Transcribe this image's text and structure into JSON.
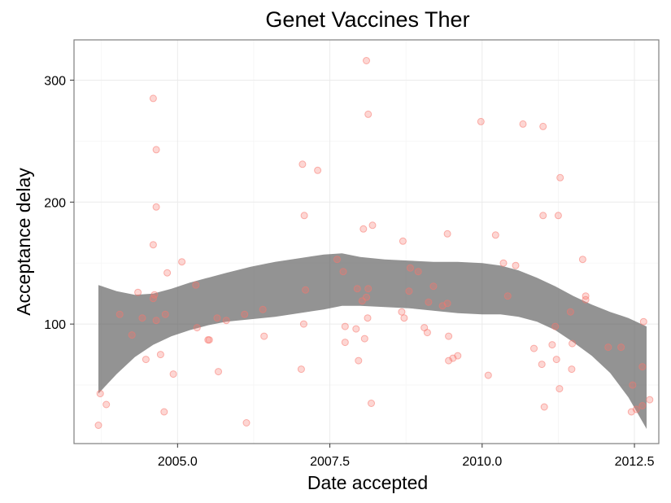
{
  "chart_data": {
    "type": "scatter",
    "title": "Genet Vaccines Ther",
    "xlabel": "Date accepted",
    "ylabel": "Acceptance delay",
    "xlim": [
      2003.3,
      2012.9
    ],
    "ylim": [
      2,
      333
    ],
    "x_ticks": [
      2005.0,
      2007.5,
      2010.0,
      2012.5
    ],
    "x_tick_labels": [
      "2005.0",
      "2007.5",
      "2010.0",
      "2012.5"
    ],
    "y_ticks": [
      100,
      200,
      300
    ],
    "y_tick_labels": [
      "100",
      "200",
      "300"
    ],
    "grid": true,
    "legend": "none",
    "colors": {
      "points": "#f8766d",
      "smooth_band": "#595959",
      "panel_border": "#7f7f7f"
    },
    "points": [
      [
        2003.7,
        17
      ],
      [
        2003.73,
        43
      ],
      [
        2003.83,
        34
      ],
      [
        2004.05,
        108
      ],
      [
        2004.25,
        91
      ],
      [
        2004.35,
        126
      ],
      [
        2004.42,
        105
      ],
      [
        2004.48,
        71
      ],
      [
        2004.6,
        285
      ],
      [
        2004.6,
        165
      ],
      [
        2004.6,
        121
      ],
      [
        2004.62,
        124
      ],
      [
        2004.65,
        243
      ],
      [
        2004.65,
        196
      ],
      [
        2004.65,
        103
      ],
      [
        2004.72,
        75
      ],
      [
        2004.78,
        28
      ],
      [
        2004.8,
        108
      ],
      [
        2004.83,
        142
      ],
      [
        2004.93,
        59
      ],
      [
        2005.07,
        151
      ],
      [
        2005.3,
        132
      ],
      [
        2005.32,
        97
      ],
      [
        2005.5,
        87
      ],
      [
        2005.52,
        87
      ],
      [
        2005.65,
        105
      ],
      [
        2005.67,
        61
      ],
      [
        2005.8,
        103
      ],
      [
        2006.1,
        108
      ],
      [
        2006.13,
        19
      ],
      [
        2006.4,
        112
      ],
      [
        2006.42,
        90
      ],
      [
        2007.03,
        63
      ],
      [
        2007.05,
        231
      ],
      [
        2007.07,
        100
      ],
      [
        2007.08,
        189
      ],
      [
        2007.1,
        128
      ],
      [
        2007.3,
        226
      ],
      [
        2007.62,
        153
      ],
      [
        2007.72,
        143
      ],
      [
        2007.75,
        98
      ],
      [
        2007.75,
        85
      ],
      [
        2007.93,
        96
      ],
      [
        2007.95,
        129
      ],
      [
        2007.97,
        70
      ],
      [
        2008.03,
        119
      ],
      [
        2008.05,
        178
      ],
      [
        2008.07,
        88
      ],
      [
        2008.1,
        122
      ],
      [
        2008.1,
        316
      ],
      [
        2008.12,
        105
      ],
      [
        2008.13,
        129
      ],
      [
        2008.13,
        272
      ],
      [
        2008.18,
        35
      ],
      [
        2008.2,
        181
      ],
      [
        2008.68,
        110
      ],
      [
        2008.7,
        168
      ],
      [
        2008.72,
        105
      ],
      [
        2008.8,
        127
      ],
      [
        2008.82,
        146
      ],
      [
        2008.95,
        143
      ],
      [
        2009.05,
        97
      ],
      [
        2009.1,
        93
      ],
      [
        2009.12,
        118
      ],
      [
        2009.2,
        131
      ],
      [
        2009.35,
        115
      ],
      [
        2009.43,
        117
      ],
      [
        2009.43,
        174
      ],
      [
        2009.45,
        90
      ],
      [
        2009.45,
        70
      ],
      [
        2009.52,
        72
      ],
      [
        2009.6,
        74
      ],
      [
        2009.98,
        266
      ],
      [
        2010.1,
        58
      ],
      [
        2010.22,
        173
      ],
      [
        2010.35,
        150
      ],
      [
        2010.42,
        123
      ],
      [
        2010.55,
        148
      ],
      [
        2010.67,
        264
      ],
      [
        2010.85,
        80
      ],
      [
        2010.98,
        67
      ],
      [
        2011.0,
        189
      ],
      [
        2011.0,
        262
      ],
      [
        2011.02,
        32
      ],
      [
        2011.15,
        83
      ],
      [
        2011.2,
        98
      ],
      [
        2011.22,
        71
      ],
      [
        2011.25,
        189
      ],
      [
        2011.27,
        47
      ],
      [
        2011.28,
        220
      ],
      [
        2011.45,
        110
      ],
      [
        2011.47,
        63
      ],
      [
        2011.48,
        84
      ],
      [
        2011.65,
        153
      ],
      [
        2011.7,
        123
      ],
      [
        2011.7,
        120
      ],
      [
        2012.07,
        81
      ],
      [
        2012.28,
        81
      ],
      [
        2012.45,
        28
      ],
      [
        2012.47,
        50
      ],
      [
        2012.53,
        30
      ],
      [
        2012.63,
        65
      ],
      [
        2012.63,
        33
      ],
      [
        2012.65,
        102
      ],
      [
        2012.75,
        38
      ]
    ],
    "smooth_band": {
      "x": [
        2003.7,
        2004.0,
        2004.3,
        2004.6,
        2004.9,
        2005.2,
        2005.5,
        2005.8,
        2006.2,
        2006.6,
        2007.0,
        2007.4,
        2007.7,
        2008.0,
        2008.4,
        2008.8,
        2009.2,
        2009.6,
        2010.0,
        2010.3,
        2010.6,
        2010.9,
        2011.2,
        2011.5,
        2011.8,
        2012.1,
        2012.4,
        2012.7
      ],
      "lower": [
        43,
        59,
        73,
        83,
        90,
        95,
        99,
        102,
        104,
        106,
        109,
        112,
        115,
        115,
        114,
        113,
        111,
        109,
        108,
        108,
        106,
        102,
        95,
        85,
        74,
        60,
        40,
        14
      ],
      "upper": [
        132,
        127,
        124,
        125,
        129,
        134,
        138,
        142,
        147,
        151,
        154,
        157,
        158,
        155,
        153,
        152,
        151,
        151,
        150,
        148,
        144,
        138,
        131,
        123,
        116,
        110,
        105,
        98
      ]
    }
  }
}
